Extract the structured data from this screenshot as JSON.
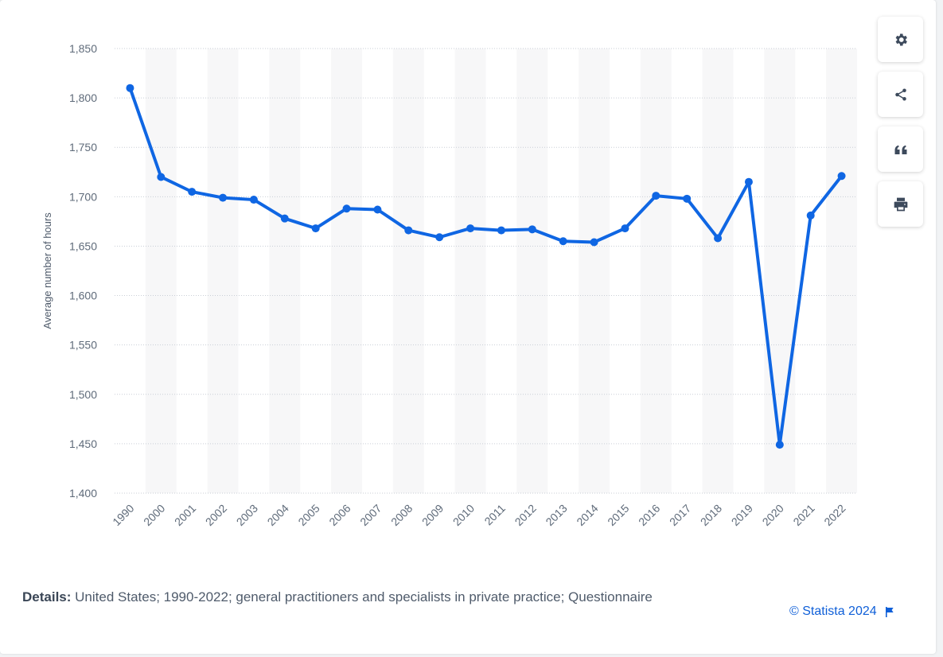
{
  "toolbar": {
    "settings_icon": "gear-icon",
    "share_icon": "share-icon",
    "cite_icon": "quote-icon",
    "print_icon": "printer-icon"
  },
  "footer": {
    "details_label": "Details:",
    "details_text": " United States; 1990-2022; general practitioners and specialists in private practice; Questionnaire",
    "copyright": "© Statista 2024",
    "flag_icon": "flag-icon"
  },
  "colors": {
    "line": "#0f66e3",
    "accent": "#0f5fd8",
    "axis_text": "#5f6b7a"
  },
  "chart_data": {
    "type": "line",
    "title": "",
    "xlabel": "",
    "ylabel": "Average number of hours",
    "ylim": [
      1400,
      1850
    ],
    "yticks": [
      1400,
      1450,
      1500,
      1550,
      1600,
      1650,
      1700,
      1750,
      1800,
      1850
    ],
    "ytick_labels": [
      "1,400",
      "1,450",
      "1,500",
      "1,550",
      "1,600",
      "1,650",
      "1,700",
      "1,750",
      "1,800",
      "1,850"
    ],
    "grid": true,
    "legend": "none",
    "categories": [
      "1990",
      "2000",
      "2001",
      "2002",
      "2003",
      "2004",
      "2005",
      "2006",
      "2007",
      "2008",
      "2009",
      "2010",
      "2011",
      "2012",
      "2013",
      "2014",
      "2015",
      "2016",
      "2017",
      "2018",
      "2019",
      "2020",
      "2021",
      "2022"
    ],
    "series": [
      {
        "values": [
          1810,
          1720,
          1705,
          1699,
          1697,
          1678,
          1668,
          1688,
          1687,
          1666,
          1659,
          1668,
          1666,
          1667,
          1655,
          1654,
          1668,
          1701,
          1698,
          1658,
          1715,
          1449,
          1681,
          1721
        ]
      }
    ]
  }
}
